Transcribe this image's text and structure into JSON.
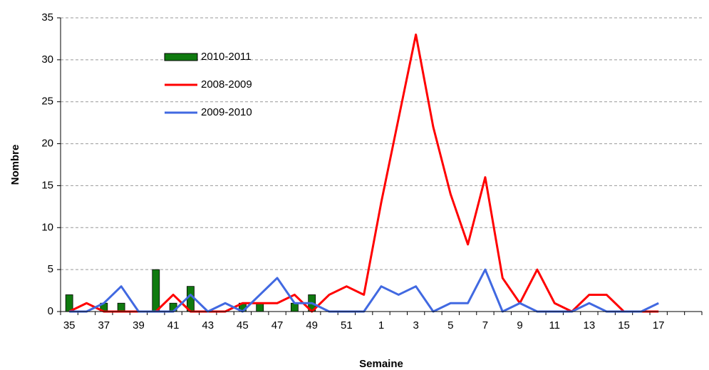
{
  "chart_data": {
    "type": "bar-line",
    "x_label": "Semaine",
    "y_label": "Nombre",
    "categories": [
      "35",
      null,
      "37",
      null,
      "39",
      null,
      "41",
      null,
      "43",
      null,
      "45",
      null,
      "47",
      null,
      "49",
      null,
      "51",
      null,
      "1",
      null,
      "3",
      null,
      "5",
      null,
      "7",
      null,
      "9",
      null,
      "11",
      null,
      "13",
      null,
      "15",
      null,
      "17",
      null,
      null
    ],
    "series": [
      {
        "name": "2010-2011",
        "type": "bar",
        "color": "#0f7a0f",
        "values": [
          2,
          0,
          1,
          1,
          0,
          5,
          1,
          3,
          0,
          0,
          1,
          1,
          0,
          1,
          2,
          null,
          null,
          null,
          null,
          null,
          null,
          null,
          null,
          null,
          null,
          null,
          null,
          null,
          null,
          null,
          null,
          null,
          null,
          null,
          null,
          null,
          null
        ]
      },
      {
        "name": "2008-2009",
        "type": "line",
        "color": "#ff0000",
        "values": [
          0,
          1,
          0,
          0,
          0,
          0,
          2,
          0,
          0,
          0,
          1,
          1,
          1,
          2,
          0,
          2,
          3,
          2,
          13,
          23,
          33,
          22,
          14,
          8,
          16,
          4,
          1,
          5,
          1,
          0,
          2,
          2,
          0,
          0,
          0,
          null,
          null
        ]
      },
      {
        "name": "2009-2010",
        "type": "line",
        "color": "#4169e1",
        "values": [
          0,
          0,
          1,
          3,
          0,
          0,
          0,
          2,
          0,
          1,
          0,
          2,
          4,
          1,
          1,
          0,
          0,
          0,
          3,
          2,
          3,
          0,
          1,
          1,
          5,
          0,
          1,
          0,
          0,
          0,
          1,
          0,
          0,
          0,
          1,
          null,
          null
        ]
      }
    ],
    "ylim": [
      0,
      35
    ],
    "yticks": [
      0,
      5,
      10,
      15,
      20,
      25,
      30,
      35
    ],
    "grid": true
  }
}
